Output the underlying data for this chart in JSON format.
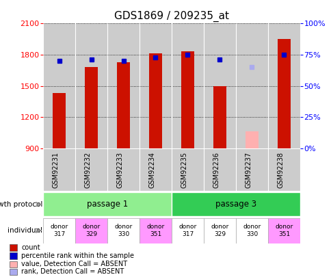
{
  "title": "GDS1869 / 209235_at",
  "samples": [
    "GSM92231",
    "GSM92232",
    "GSM92233",
    "GSM92234",
    "GSM92235",
    "GSM92236",
    "GSM92237",
    "GSM92238"
  ],
  "count_values": [
    1430,
    1680,
    1730,
    1810,
    1830,
    1500,
    null,
    1950
  ],
  "count_absent": [
    null,
    null,
    null,
    null,
    null,
    null,
    1060,
    null
  ],
  "percentile_values": [
    70,
    71,
    70,
    73,
    75,
    71,
    null,
    75
  ],
  "percentile_absent": [
    null,
    null,
    null,
    null,
    null,
    null,
    65,
    null
  ],
  "ylim_left": [
    900,
    2100
  ],
  "ylim_right": [
    0,
    100
  ],
  "yticks_left": [
    900,
    1200,
    1500,
    1800,
    2100
  ],
  "yticks_right": [
    0,
    25,
    50,
    75,
    100
  ],
  "gp_labels": [
    "passage 1",
    "passage 3"
  ],
  "gp_colors": [
    "#90EE90",
    "#33CC55"
  ],
  "bar_color": "#cc1100",
  "bar_absent_color": "#ffb0b0",
  "dot_color": "#0000cc",
  "dot_absent_color": "#aaaaee",
  "background_color": "#ffffff",
  "plot_bg": "#cccccc",
  "bar_width": 0.4,
  "donor_labels": [
    "donor\n317",
    "donor\n329",
    "donor\n330",
    "donor\n351",
    "donor\n317",
    "donor\n329",
    "donor\n330",
    "donor\n351"
  ],
  "donor_colors": [
    "#ffffff",
    "#ff99ff",
    "#ffffff",
    "#ff99ff",
    "#ffffff",
    "#ffffff",
    "#ffffff",
    "#ff99ff"
  ],
  "legend_labels": [
    "count",
    "percentile rank within the sample",
    "value, Detection Call = ABSENT",
    "rank, Detection Call = ABSENT"
  ],
  "legend_colors": [
    "#cc1100",
    "#0000cc",
    "#ffb0b0",
    "#aaaaee"
  ]
}
